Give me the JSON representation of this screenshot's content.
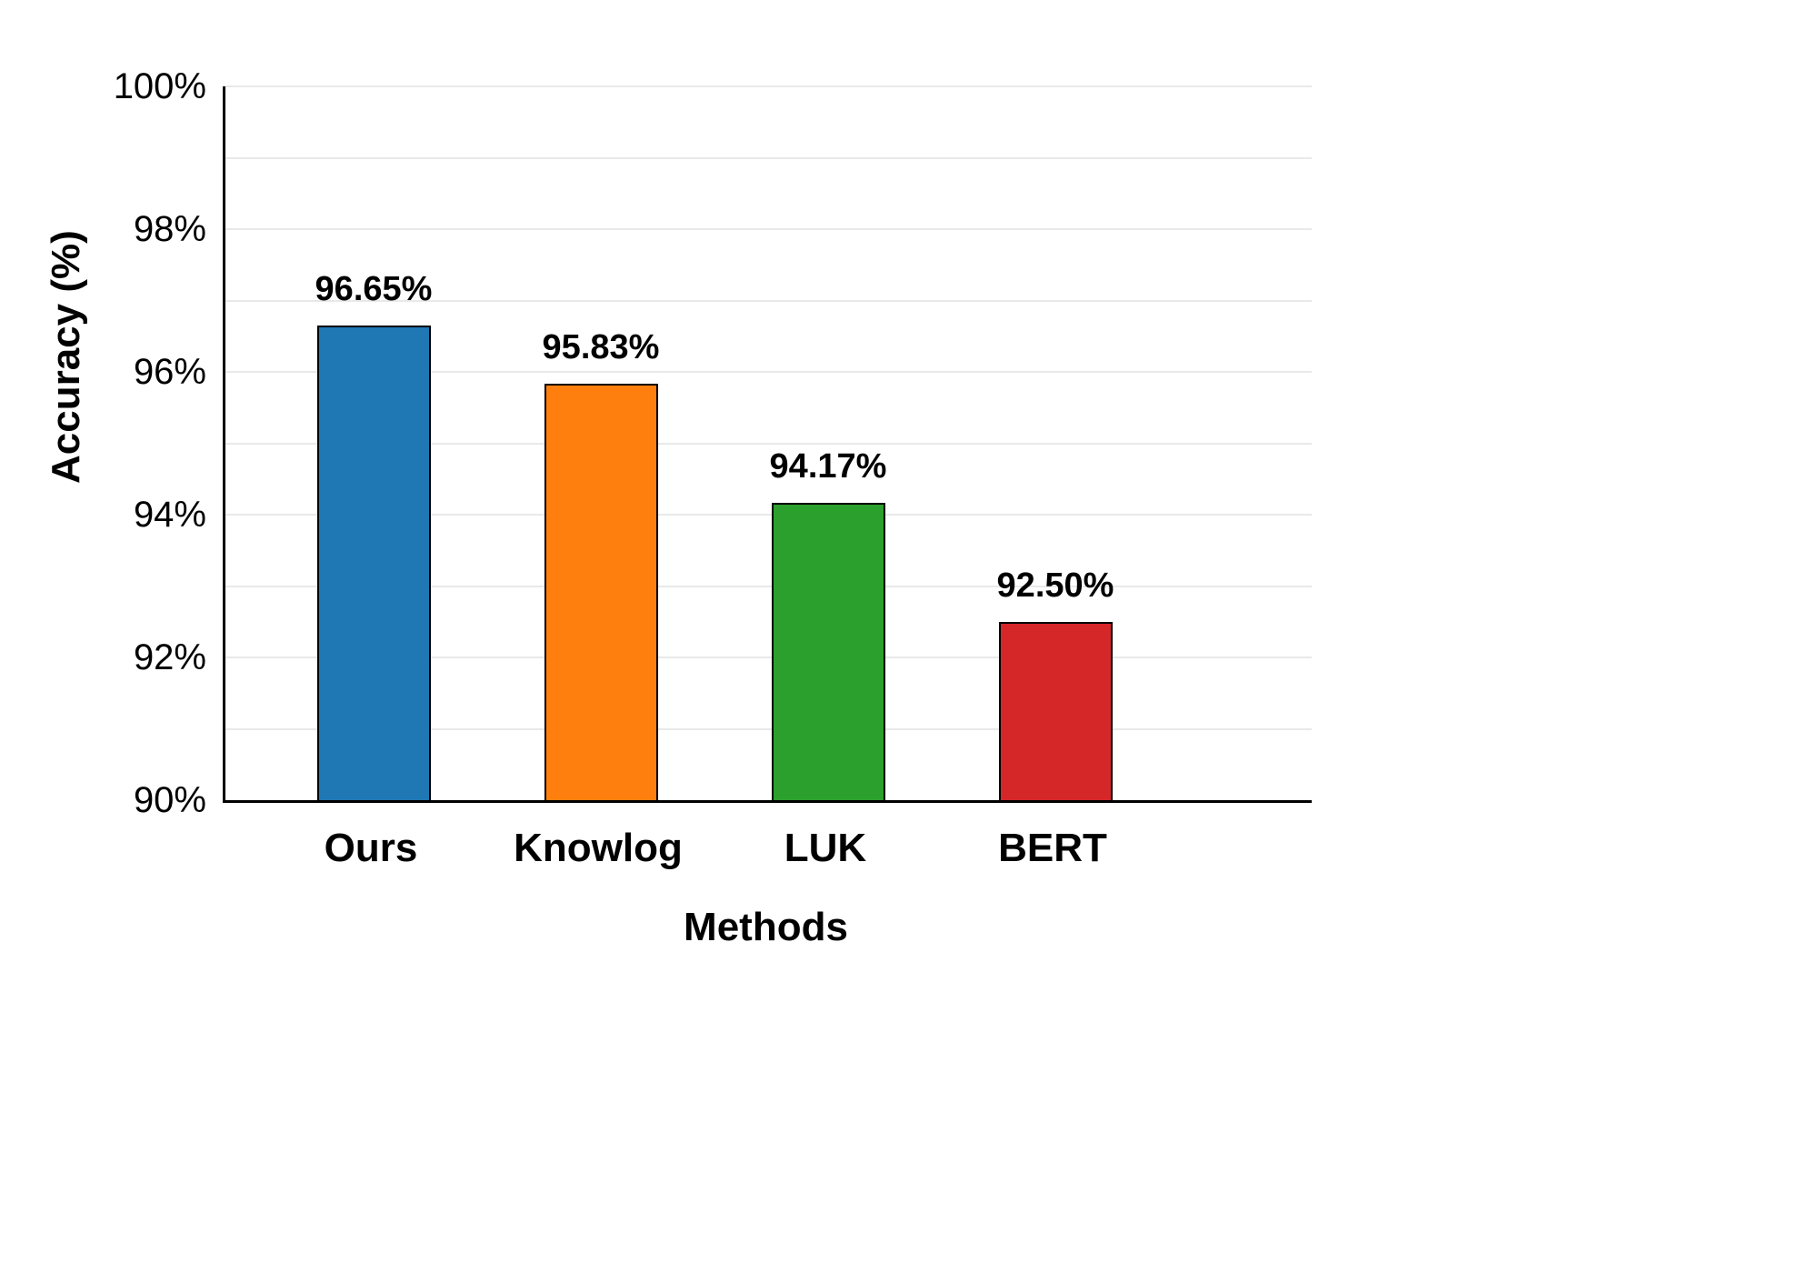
{
  "chart_data": {
    "type": "bar",
    "categories": [
      "Ours",
      "Knowlog",
      "LUK",
      "BERT"
    ],
    "values": [
      96.65,
      95.83,
      94.17,
      92.5
    ],
    "bar_labels": [
      "96.65%",
      "95.83%",
      "94.17%",
      "92.50%"
    ],
    "colors": [
      "#1f77b4",
      "#ff7f0e",
      "#2ca02c",
      "#d62728"
    ],
    "title": "",
    "xlabel": "Methods",
    "ylabel": "Accuracy (%)",
    "ylim": [
      90,
      100
    ],
    "yticks": [
      90,
      92,
      94,
      96,
      98,
      100
    ],
    "ytick_labels": [
      "90%",
      "92%",
      "94%",
      "96%",
      "98%",
      "100%"
    ],
    "grid": "horizontal",
    "grid_step": 1,
    "legend": "none",
    "bar_edge_color": "#000000"
  }
}
